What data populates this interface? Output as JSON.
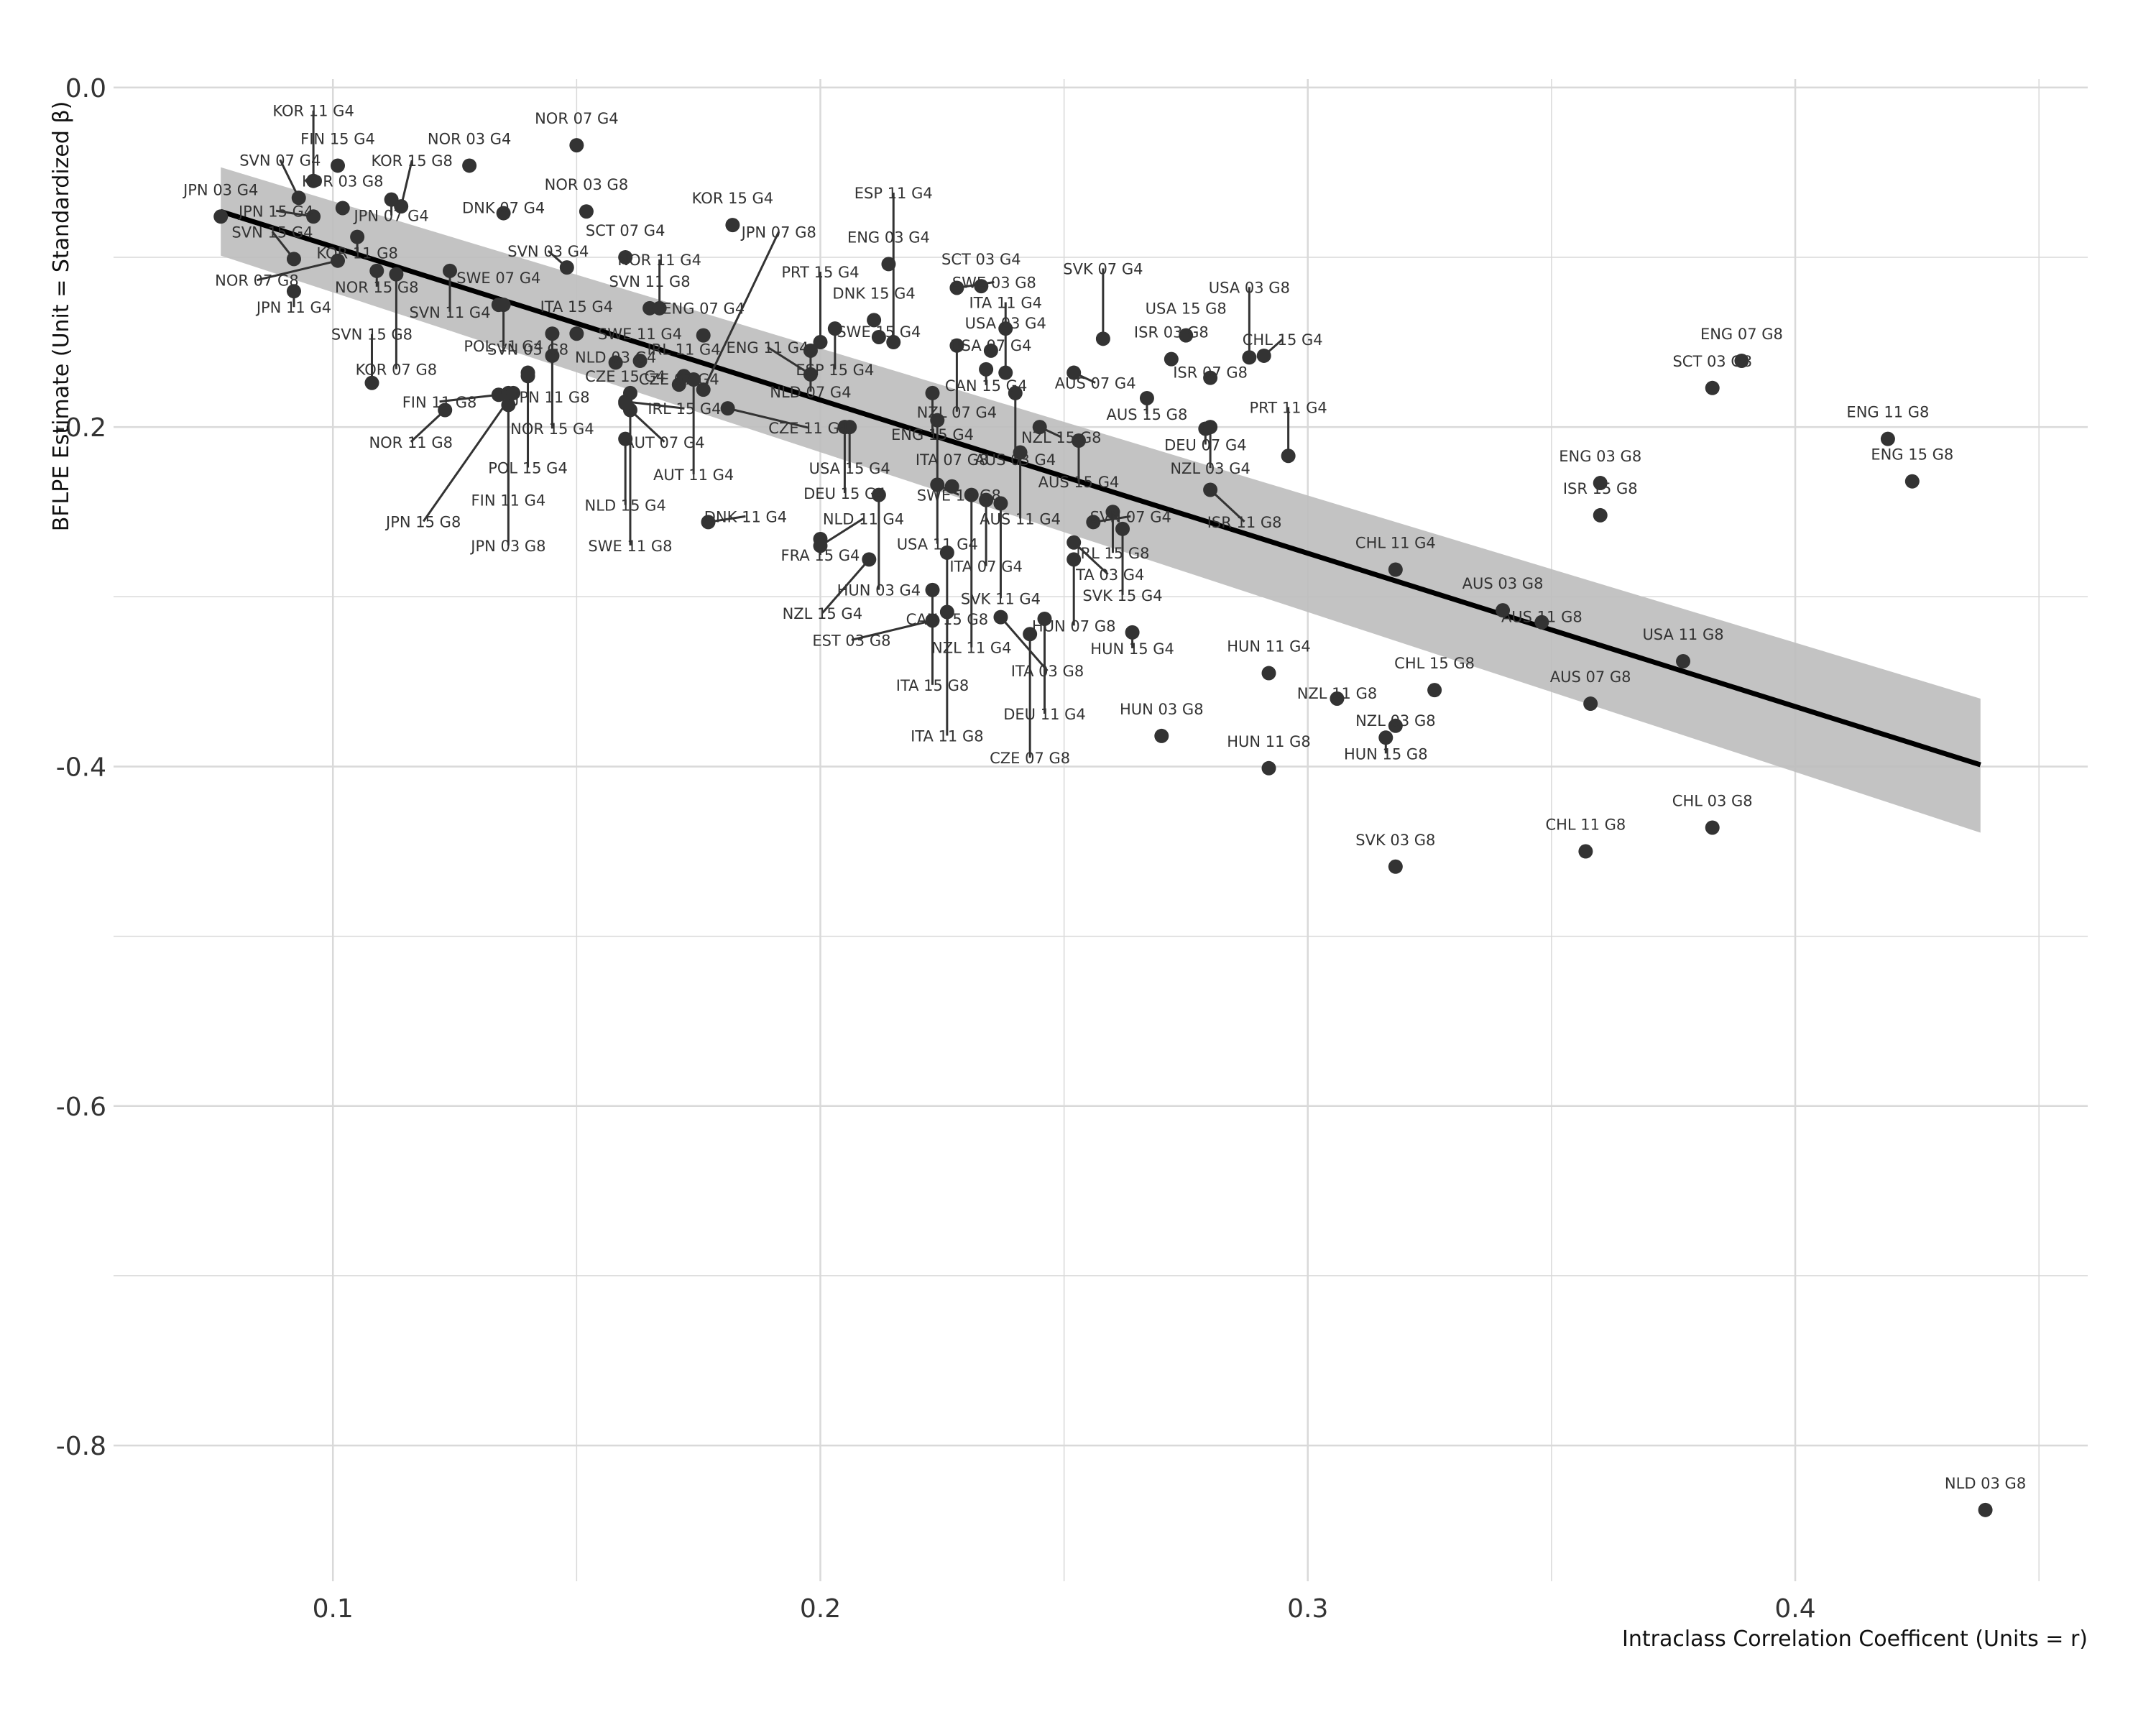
{
  "chart_data": {
    "type": "scatter",
    "xlabel": "Intraclass Correlation Coefficent (Units = r)",
    "ylabel": "BFLPE Estimate (Unit = Standardized β)",
    "xlim": [
      0.055,
      0.46
    ],
    "ylim": [
      -0.88,
      0.005
    ],
    "x_ticks": [
      0.1,
      0.2,
      0.3,
      0.4
    ],
    "x_tick_labels": [
      "0.1",
      "0.2",
      "0.3",
      "0.4"
    ],
    "y_ticks": [
      0.0,
      -0.2,
      -0.4,
      -0.6,
      -0.8
    ],
    "y_tick_labels": [
      "0.0",
      "-0.2",
      "-0.4",
      "-0.6",
      "-0.8"
    ],
    "grid": true,
    "regression": {
      "x": [
        0.077,
        0.438
      ],
      "y": [
        -0.073,
        -0.399
      ],
      "ci_lower": [
        -0.099,
        -0.439
      ],
      "ci_upper": [
        -0.047,
        -0.36
      ]
    },
    "colors": {
      "point": "#333333",
      "line": "#000000",
      "band": "#bdbdbd",
      "grid": "#d9d9d9"
    },
    "points": [
      {
        "label": "FIN 15 G4",
        "x": 0.101,
        "y": -0.046
      },
      {
        "label": "KOR 03 G8",
        "x": 0.102,
        "y": -0.071
      },
      {
        "label": "JPN 07 G4",
        "x": 0.112,
        "y": -0.066
      },
      {
        "label": "NOR 07 G4",
        "x": 0.15,
        "y": -0.034
      },
      {
        "label": "KOR 11 G4",
        "x": 0.096,
        "y": -0.055
      },
      {
        "label": "KOR 15 G8",
        "x": 0.114,
        "y": -0.07
      },
      {
        "label": "NOR 03 G4",
        "x": 0.128,
        "y": -0.046
      },
      {
        "label": "NOR 03 G8",
        "x": 0.152,
        "y": -0.073
      },
      {
        "label": "SCT 07 G4",
        "x": 0.16,
        "y": -0.1
      },
      {
        "label": "DNK 07 G4",
        "x": 0.135,
        "y": -0.074
      },
      {
        "label": "SVN 07 G4",
        "x": 0.093,
        "y": -0.065
      },
      {
        "label": "KOR 11 G8",
        "x": 0.105,
        "y": -0.088
      },
      {
        "label": "JPN 15 G4",
        "x": 0.096,
        "y": -0.076
      },
      {
        "label": "JPN 03 G4",
        "x": 0.077,
        "y": -0.076
      },
      {
        "label": "SWE 07 G4",
        "x": 0.134,
        "y": -0.128
      },
      {
        "label": "SVN 11 G8",
        "x": 0.165,
        "y": -0.13
      },
      {
        "label": "NOR 11 G4",
        "x": 0.167,
        "y": -0.13
      },
      {
        "label": "ENG 03 G4",
        "x": 0.214,
        "y": -0.104
      },
      {
        "label": "KOR 15 G4",
        "x": 0.182,
        "y": -0.081
      },
      {
        "label": "DNK 15 G4",
        "x": 0.211,
        "y": -0.137
      },
      {
        "label": "SWE 15 G4",
        "x": 0.212,
        "y": -0.147
      },
      {
        "label": "SCT 03 G4",
        "x": 0.233,
        "y": -0.117
      },
      {
        "label": "PRT 15 G4",
        "x": 0.2,
        "y": -0.15
      },
      {
        "label": "SWE 03 G8",
        "x": 0.228,
        "y": -0.118
      },
      {
        "label": "USA 03 G4",
        "x": 0.238,
        "y": -0.142
      },
      {
        "label": "NOR 15 G8",
        "x": 0.109,
        "y": -0.108
      },
      {
        "label": "SVN 03 G4",
        "x": 0.148,
        "y": -0.106
      },
      {
        "label": "ENG 07 G4",
        "x": 0.176,
        "y": -0.146
      },
      {
        "label": "JPN 11 G4",
        "x": 0.092,
        "y": -0.12
      },
      {
        "label": "NOR 07 G8",
        "x": 0.101,
        "y": -0.102
      },
      {
        "label": "SVN 11 G4",
        "x": 0.124,
        "y": -0.108
      },
      {
        "label": "ESP 15 G4",
        "x": 0.203,
        "y": -0.142
      },
      {
        "label": "USA 07 G4",
        "x": 0.235,
        "y": -0.155
      },
      {
        "label": "CAN 15 G4",
        "x": 0.234,
        "y": -0.166
      },
      {
        "label": "USA 15 G8",
        "x": 0.275,
        "y": -0.146
      },
      {
        "label": "ITA 15 G4",
        "x": 0.15,
        "y": -0.145
      },
      {
        "label": "SWE 11 G4",
        "x": 0.163,
        "y": -0.161
      },
      {
        "label": "POL 11 G4",
        "x": 0.135,
        "y": -0.128
      },
      {
        "label": "KOR 07 G8",
        "x": 0.113,
        "y": -0.11
      },
      {
        "label": "NLD 03 G4",
        "x": 0.158,
        "y": -0.162
      },
      {
        "label": "NLD 07 G4",
        "x": 0.198,
        "y": -0.155
      },
      {
        "label": "ESP 11 G4",
        "x": 0.215,
        "y": -0.15
      },
      {
        "label": "ISR 03 G8",
        "x": 0.272,
        "y": -0.16
      },
      {
        "label": "CHL 15 G4",
        "x": 0.291,
        "y": -0.158
      },
      {
        "label": "SVN 15 G4",
        "x": 0.092,
        "y": -0.101
      },
      {
        "label": "SVK 07 G4",
        "x": 0.258,
        "y": -0.148
      },
      {
        "label": "ITA 11 G4",
        "x": 0.238,
        "y": -0.168
      },
      {
        "label": "USA 03 G8",
        "x": 0.288,
        "y": -0.159
      },
      {
        "label": "NZL 07 G4",
        "x": 0.228,
        "y": -0.152
      },
      {
        "label": "JPN 11 G8",
        "x": 0.145,
        "y": -0.158
      },
      {
        "label": "NOR 15 G4",
        "x": 0.145,
        "y": -0.145
      },
      {
        "label": "CZE 07 G4",
        "x": 0.171,
        "y": -0.175
      },
      {
        "label": "AUS 07 G4",
        "x": 0.252,
        "y": -0.168
      },
      {
        "label": "ISR 07 G8",
        "x": 0.28,
        "y": -0.171
      },
      {
        "label": "AUS 15 G8",
        "x": 0.267,
        "y": -0.183
      },
      {
        "label": "IRL 15 G4",
        "x": 0.16,
        "y": -0.185
      },
      {
        "label": "POL 15 G4",
        "x": 0.14,
        "y": -0.168
      },
      {
        "label": "SVN 15 G8",
        "x": 0.108,
        "y": -0.174
      },
      {
        "label": "ENG 11 G4",
        "x": 0.198,
        "y": -0.169
      },
      {
        "label": "ENG 15 G4",
        "x": 0.223,
        "y": -0.18
      },
      {
        "label": "AUS 03 G4",
        "x": 0.24,
        "y": -0.18
      },
      {
        "label": "DEU 07 G4",
        "x": 0.279,
        "y": -0.201
      },
      {
        "label": "NZL 03 G4",
        "x": 0.28,
        "y": -0.2
      },
      {
        "label": "FIN 11 G8",
        "x": 0.134,
        "y": -0.181
      },
      {
        "label": "AUT 07 G4",
        "x": 0.161,
        "y": -0.19
      },
      {
        "label": "AUT 11 G4",
        "x": 0.174,
        "y": -0.172
      },
      {
        "label": "NOR 11 G8",
        "x": 0.123,
        "y": -0.19
      },
      {
        "label": "FIN 11 G4",
        "x": 0.136,
        "y": -0.187
      },
      {
        "label": "CZE 11 G4",
        "x": 0.181,
        "y": -0.189
      },
      {
        "label": "USA 15 G4",
        "x": 0.206,
        "y": -0.2
      },
      {
        "label": "NZL 15 G8",
        "x": 0.245,
        "y": -0.2
      },
      {
        "label": "AUS 15 G4",
        "x": 0.253,
        "y": -0.208
      },
      {
        "label": "PRT 11 G4",
        "x": 0.296,
        "y": -0.217
      },
      {
        "label": "NLD 15 G4",
        "x": 0.16,
        "y": -0.207
      },
      {
        "label": "SWE 11 G8",
        "x": 0.161,
        "y": -0.18
      },
      {
        "label": "DEU 15 G4",
        "x": 0.205,
        "y": -0.2
      },
      {
        "label": "AUS 11 G4",
        "x": 0.241,
        "y": -0.215
      },
      {
        "label": "JPN 03 G8",
        "x": 0.136,
        "y": -0.18
      },
      {
        "label": "SVN 03 G8",
        "x": 0.14,
        "y": -0.17
      },
      {
        "label": "CZE 15 G4",
        "x": 0.16,
        "y": -0.186
      },
      {
        "label": "JPN 07 G8",
        "x": 0.176,
        "y": -0.178
      },
      {
        "label": "USA 11 G4",
        "x": 0.224,
        "y": -0.196
      },
      {
        "label": "SWE 15 G8",
        "x": 0.224,
        "y": -0.234
      },
      {
        "label": "ITA 07 G4",
        "x": 0.234,
        "y": -0.243
      },
      {
        "label": "SVN 07 G4",
        "x": 0.256,
        "y": -0.256
      },
      {
        "label": "IRL 15 G8",
        "x": 0.26,
        "y": -0.25
      },
      {
        "label": "ISR 11 G8",
        "x": 0.28,
        "y": -0.237
      },
      {
        "label": "JPN 15 G8",
        "x": 0.137,
        "y": -0.18
      },
      {
        "label": "IRL 11 G4",
        "x": 0.172,
        "y": -0.17
      },
      {
        "label": "DNK 11 G4",
        "x": 0.177,
        "y": -0.256
      },
      {
        "label": "HUN 03 G4",
        "x": 0.212,
        "y": -0.24
      },
      {
        "label": "SVK 15 G4",
        "x": 0.262,
        "y": -0.26
      },
      {
        "label": "ITA 03 G4",
        "x": 0.252,
        "y": -0.268
      },
      {
        "label": "FRA 15 G4",
        "x": 0.2,
        "y": -0.266
      },
      {
        "label": "CAN 15 G8",
        "x": 0.226,
        "y": -0.274
      },
      {
        "label": "HUN 07 G8",
        "x": 0.252,
        "y": -0.278
      },
      {
        "label": "NLD 11 G4",
        "x": 0.2,
        "y": -0.27
      },
      {
        "label": "NZL 15 G4",
        "x": 0.21,
        "y": -0.278
      },
      {
        "label": "NZL 11 G4",
        "x": 0.231,
        "y": -0.24
      },
      {
        "label": "SVK 11 G4",
        "x": 0.237,
        "y": -0.245
      },
      {
        "label": "ITA 15 G8",
        "x": 0.223,
        "y": -0.296
      },
      {
        "label": "CHL 11 G4",
        "x": 0.318,
        "y": -0.284
      },
      {
        "label": "AUS 03 G8",
        "x": 0.34,
        "y": -0.308
      },
      {
        "label": "AUS 11 G8",
        "x": 0.348,
        "y": -0.315
      },
      {
        "label": "EST 03 G8",
        "x": 0.223,
        "y": -0.314
      },
      {
        "label": "ITA 07 G8",
        "x": 0.227,
        "y": -0.235
      },
      {
        "label": "ITA 03 G8",
        "x": 0.237,
        "y": -0.312
      },
      {
        "label": "DEU 11 G4",
        "x": 0.246,
        "y": -0.313
      },
      {
        "label": "ITA 11 G8",
        "x": 0.226,
        "y": -0.309
      },
      {
        "label": "CZE 07 G8",
        "x": 0.243,
        "y": -0.322
      },
      {
        "label": "HUN 15 G4",
        "x": 0.264,
        "y": -0.321
      },
      {
        "label": "HUN 11 G4",
        "x": 0.292,
        "y": -0.345
      },
      {
        "label": "CHL 15 G8",
        "x": 0.326,
        "y": -0.355
      },
      {
        "label": "USA 11 G8",
        "x": 0.377,
        "y": -0.338
      },
      {
        "label": "NZL 11 G8",
        "x": 0.306,
        "y": -0.36
      },
      {
        "label": "NZL 03 G8",
        "x": 0.318,
        "y": -0.376
      },
      {
        "label": "HUN 15 G8",
        "x": 0.316,
        "y": -0.383
      },
      {
        "label": "AUS 07 G8",
        "x": 0.358,
        "y": -0.363
      },
      {
        "label": "HUN 03 G8",
        "x": 0.27,
        "y": -0.382
      },
      {
        "label": "HUN 11 G8",
        "x": 0.292,
        "y": -0.401
      },
      {
        "label": "CHL 11 G8",
        "x": 0.357,
        "y": -0.45
      },
      {
        "label": "CHL 03 G8",
        "x": 0.383,
        "y": -0.436
      },
      {
        "label": "SVK 03 G8",
        "x": 0.318,
        "y": -0.459
      },
      {
        "label": "ENG 07 G8",
        "x": 0.389,
        "y": -0.161
      },
      {
        "label": "SCT 03 G8",
        "x": 0.383,
        "y": -0.177
      },
      {
        "label": "ENG 03 G8",
        "x": 0.36,
        "y": -0.233
      },
      {
        "label": "ISR 15 G8",
        "x": 0.36,
        "y": -0.252
      },
      {
        "label": "ENG 11 G8",
        "x": 0.419,
        "y": -0.207
      },
      {
        "label": "ENG 15 G8",
        "x": 0.424,
        "y": -0.232
      },
      {
        "label": "NLD 03 G8",
        "x": 0.439,
        "y": -0.838
      }
    ]
  }
}
